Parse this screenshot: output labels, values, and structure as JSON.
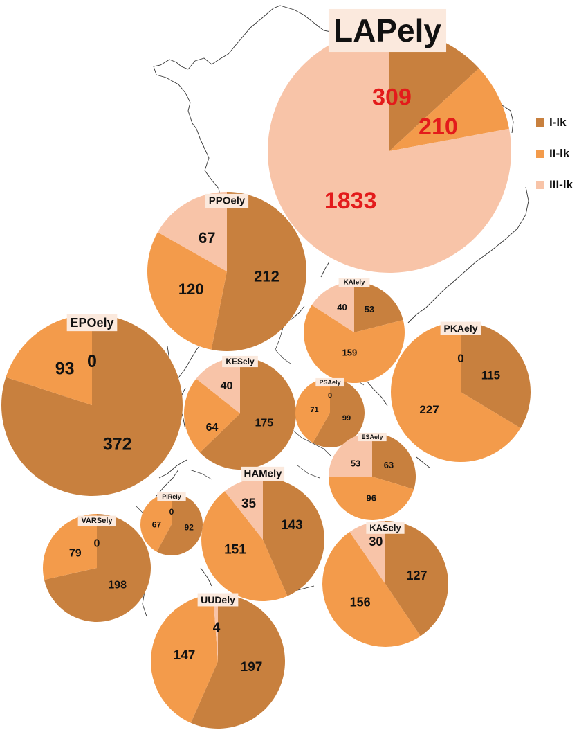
{
  "colors": {
    "I-lk": "#C8803E",
    "II-lk": "#F39B4B",
    "III-lk": "#F8C4A8",
    "map_line": "#333333",
    "red_label": "#E31B1B"
  },
  "legend": {
    "items": [
      "I-lk",
      "II-lk",
      "III-lk"
    ]
  },
  "chart_data": {
    "type": "pie",
    "categories": [
      "I-lk",
      "II-lk",
      "III-lk"
    ],
    "regions": [
      {
        "name": "LAPely",
        "values": [
          309,
          210,
          1833
        ]
      },
      {
        "name": "PPOely",
        "values": [
          212,
          120,
          67
        ]
      },
      {
        "name": "KAIely",
        "values": [
          53,
          159,
          40
        ]
      },
      {
        "name": "PKAely",
        "values": [
          115,
          227,
          0
        ]
      },
      {
        "name": "EPOely",
        "values": [
          372,
          93,
          0
        ]
      },
      {
        "name": "KESely",
        "values": [
          175,
          64,
          40
        ]
      },
      {
        "name": "PSAely",
        "values": [
          99,
          71,
          0
        ]
      },
      {
        "name": "ESAely",
        "values": [
          63,
          96,
          53
        ]
      },
      {
        "name": "HAMely",
        "values": [
          143,
          151,
          35
        ]
      },
      {
        "name": "PIRely",
        "values": [
          92,
          67,
          0
        ]
      },
      {
        "name": "VARSely",
        "values": [
          198,
          79,
          0
        ]
      },
      {
        "name": "KASely",
        "values": [
          127,
          156,
          30
        ]
      },
      {
        "name": "UUDely",
        "values": [
          197,
          147,
          4
        ]
      }
    ]
  }
}
